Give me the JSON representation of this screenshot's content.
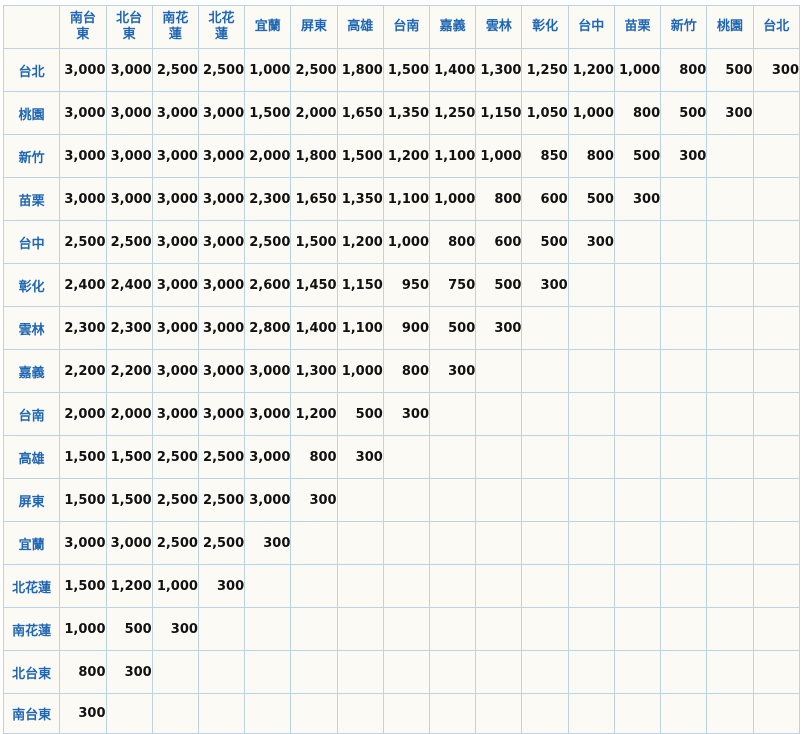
{
  "columns": [
    "南台東",
    "北台東",
    "南花蓮",
    "北花蓮",
    "宜蘭",
    "屏東",
    "高雄",
    "台南",
    "嘉義",
    "雲林",
    "彰化",
    "台中",
    "苗栗",
    "新竹",
    "桃園",
    "台北"
  ],
  "rows": [
    {
      "station": "台北",
      "fares": [
        "3,000",
        "3,000",
        "2,500",
        "2,500",
        "1,000",
        "2,500",
        "1,800",
        "1,500",
        "1,400",
        "1,300",
        "1,250",
        "1,200",
        "1,000",
        "800",
        "500",
        "300"
      ]
    },
    {
      "station": "桃園",
      "fares": [
        "3,000",
        "3,000",
        "3,000",
        "3,000",
        "1,500",
        "2,000",
        "1,650",
        "1,350",
        "1,250",
        "1,150",
        "1,050",
        "1,000",
        "800",
        "500",
        "300",
        ""
      ]
    },
    {
      "station": "新竹",
      "fares": [
        "3,000",
        "3,000",
        "3,000",
        "3,000",
        "2,000",
        "1,800",
        "1,500",
        "1,200",
        "1,100",
        "1,000",
        "850",
        "800",
        "500",
        "300",
        "",
        ""
      ]
    },
    {
      "station": "苗栗",
      "fares": [
        "3,000",
        "3,000",
        "3,000",
        "3,000",
        "2,300",
        "1,650",
        "1,350",
        "1,100",
        "1,000",
        "800",
        "600",
        "500",
        "300",
        "",
        "",
        ""
      ]
    },
    {
      "station": "台中",
      "fares": [
        "2,500",
        "2,500",
        "3,000",
        "3,000",
        "2,500",
        "1,500",
        "1,200",
        "1,000",
        "800",
        "600",
        "500",
        "300",
        "",
        "",
        "",
        ""
      ]
    },
    {
      "station": "彰化",
      "fares": [
        "2,400",
        "2,400",
        "3,000",
        "3,000",
        "2,600",
        "1,450",
        "1,150",
        "950",
        "750",
        "500",
        "300",
        "",
        "",
        "",
        "",
        ""
      ]
    },
    {
      "station": "雲林",
      "fares": [
        "2,300",
        "2,300",
        "3,000",
        "3,000",
        "2,800",
        "1,400",
        "1,100",
        "900",
        "500",
        "300",
        "",
        "",
        "",
        "",
        "",
        ""
      ]
    },
    {
      "station": "嘉義",
      "fares": [
        "2,200",
        "2,200",
        "3,000",
        "3,000",
        "3,000",
        "1,300",
        "1,000",
        "800",
        "300",
        "",
        "",
        "",
        "",
        "",
        "",
        ""
      ]
    },
    {
      "station": "台南",
      "fares": [
        "2,000",
        "2,000",
        "3,000",
        "3,000",
        "3,000",
        "1,200",
        "500",
        "300",
        "",
        "",
        "",
        "",
        "",
        "",
        "",
        ""
      ]
    },
    {
      "station": "高雄",
      "fares": [
        "1,500",
        "1,500",
        "2,500",
        "2,500",
        "3,000",
        "800",
        "300",
        "",
        "",
        "",
        "",
        "",
        "",
        "",
        "",
        ""
      ]
    },
    {
      "station": "屏東",
      "fares": [
        "1,500",
        "1,500",
        "2,500",
        "2,500",
        "3,000",
        "300",
        "",
        "",
        "",
        "",
        "",
        "",
        "",
        "",
        "",
        ""
      ]
    },
    {
      "station": "宜蘭",
      "fares": [
        "3,000",
        "3,000",
        "2,500",
        "2,500",
        "300",
        "",
        "",
        "",
        "",
        "",
        "",
        "",
        "",
        "",
        "",
        ""
      ]
    },
    {
      "station": "北花蓮",
      "fares": [
        "1,500",
        "1,200",
        "1,000",
        "300",
        "",
        "",
        "",
        "",
        "",
        "",
        "",
        "",
        "",
        "",
        "",
        ""
      ]
    },
    {
      "station": "南花蓮",
      "fares": [
        "1,000",
        "500",
        "300",
        "",
        "",
        "",
        "",
        "",
        "",
        "",
        "",
        "",
        "",
        "",
        "",
        ""
      ]
    },
    {
      "station": "北台東",
      "fares": [
        "800",
        "300",
        "",
        "",
        "",
        "",
        "",
        "",
        "",
        "",
        "",
        "",
        "",
        "",
        "",
        ""
      ]
    },
    {
      "station": "南台東",
      "fares": [
        "300",
        "",
        "",
        "",
        "",
        "",
        "",
        "",
        "",
        "",
        "",
        "",
        "",
        "",
        "",
        ""
      ]
    }
  ]
}
